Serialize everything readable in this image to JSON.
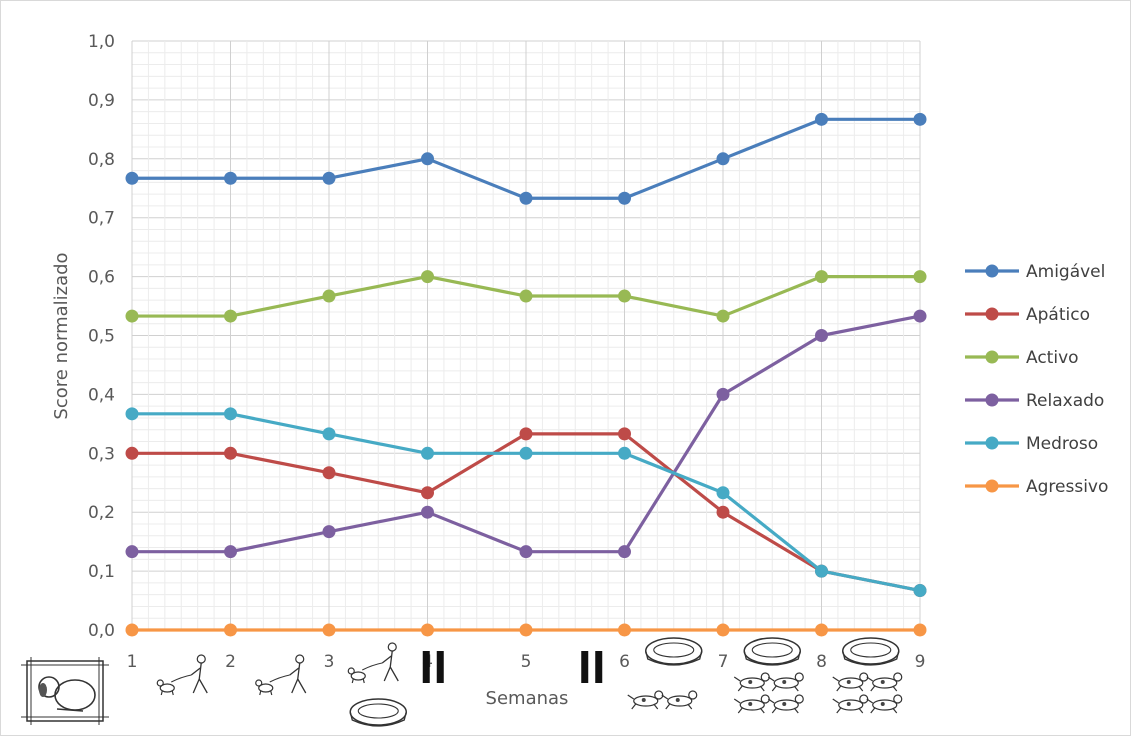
{
  "chart_data": {
    "type": "line",
    "title": "",
    "xlabel": "Semanas",
    "ylabel": "Score normalizado",
    "x": [
      1,
      2,
      3,
      4,
      5,
      6,
      7,
      8,
      9
    ],
    "ylim": [
      0,
      1.0
    ],
    "yticks": [
      "0,0",
      "0,1",
      "0,2",
      "0,3",
      "0,4",
      "0,5",
      "0,6",
      "0,7",
      "0,8",
      "0,9",
      "1,0"
    ],
    "grid": true,
    "legend_position": "right",
    "series": [
      {
        "name": "Amigável",
        "color": "#4a7ebb",
        "values": [
          0.767,
          0.767,
          0.767,
          0.8,
          0.733,
          0.733,
          0.8,
          0.867,
          0.867
        ]
      },
      {
        "name": "Apático",
        "color": "#be4b48",
        "values": [
          0.3,
          0.3,
          0.267,
          0.233,
          0.333,
          0.333,
          0.2,
          0.1,
          0.067
        ]
      },
      {
        "name": "Activo",
        "color": "#98b954",
        "values": [
          0.533,
          0.533,
          0.567,
          0.6,
          0.567,
          0.567,
          0.533,
          0.6,
          0.6
        ]
      },
      {
        "name": "Relaxado",
        "color": "#7d60a0",
        "values": [
          0.133,
          0.133,
          0.167,
          0.2,
          0.133,
          0.133,
          0.4,
          0.5,
          0.533
        ]
      },
      {
        "name": "Medroso",
        "color": "#46aac5",
        "values": [
          0.367,
          0.367,
          0.333,
          0.3,
          0.3,
          0.3,
          0.233,
          0.1,
          0.067
        ]
      },
      {
        "name": "Agressivo",
        "color": "#f79646",
        "values": [
          0,
          0,
          0,
          0,
          0,
          0,
          0,
          0,
          0
        ]
      }
    ],
    "phase_icons": [
      {
        "after_week": 0,
        "icon": "dog-lying-icon"
      },
      {
        "after_week": 1,
        "icon": "dog-walk-icon"
      },
      {
        "after_week": 2,
        "icon": "dog-walk-icon"
      },
      {
        "after_week": 3,
        "icon": "dog-walk-icon"
      },
      {
        "after_week": 3,
        "icon": "dog-bed-icon"
      },
      {
        "after_week": 4,
        "icon": "pause-icon"
      },
      {
        "after_week": 5,
        "icon": "pause-icon"
      },
      {
        "after_week": 6,
        "icon": "dog-bed-icon"
      },
      {
        "after_week": 6,
        "icon": "dogs-playing-icon"
      },
      {
        "after_week": 7,
        "icon": "dog-bed-icon"
      },
      {
        "after_week": 7,
        "icon": "dogs-playing-icon"
      },
      {
        "after_week": 8,
        "icon": "dog-bed-icon"
      },
      {
        "after_week": 8,
        "icon": "dogs-playing-icon"
      }
    ]
  }
}
